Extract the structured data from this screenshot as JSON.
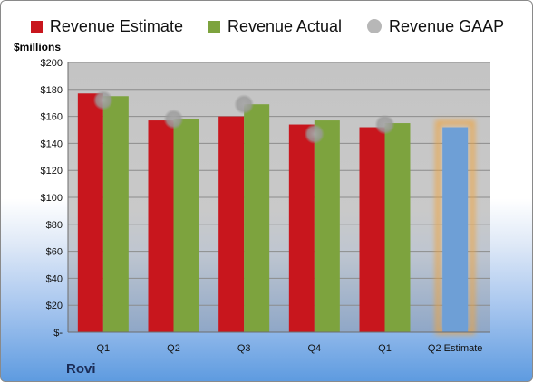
{
  "legend": {
    "estimate": "Revenue Estimate",
    "actual": "Revenue Actual",
    "gaap": "Revenue GAAP"
  },
  "unit_label": "$millions",
  "company": "Rovi",
  "colors": {
    "estimate": "#c8161d",
    "actual": "#7da33e",
    "gaap": "#b7b7b7",
    "future_estimate": "#6e9fd6",
    "highlight": "#f0a23a"
  },
  "chart_data": {
    "type": "bar",
    "categories": [
      "Q1",
      "Q2",
      "Q3",
      "Q4",
      "Q1",
      "Q2 Estimate"
    ],
    "series": [
      {
        "name": "Revenue Estimate",
        "values": [
          177,
          157,
          160,
          154,
          152,
          152
        ]
      },
      {
        "name": "Revenue Actual",
        "values": [
          175,
          158,
          169,
          157,
          155,
          null
        ]
      },
      {
        "name": "Revenue GAAP",
        "values": [
          172,
          158,
          169,
          147,
          154,
          null
        ]
      }
    ],
    "ylabel": "$millions",
    "ylim": [
      0,
      200
    ],
    "yticks": [
      0,
      20,
      40,
      60,
      80,
      100,
      120,
      140,
      160,
      180,
      200
    ],
    "ytick_labels": [
      "$-",
      "$20",
      "$40",
      "$60",
      "$80",
      "$100",
      "$120",
      "$140",
      "$160",
      "$180",
      "$200"
    ],
    "grid": true,
    "legend_position": "top"
  }
}
